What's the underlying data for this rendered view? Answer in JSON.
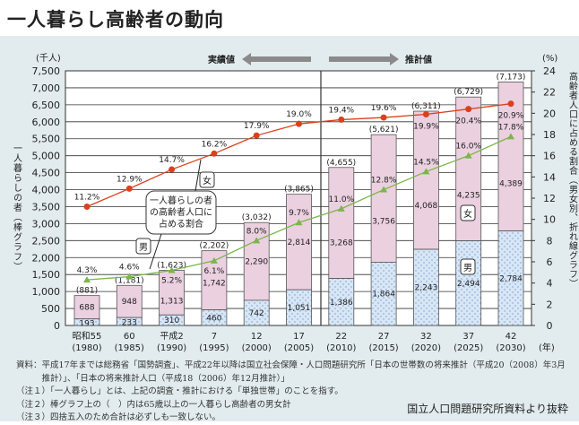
{
  "title": "一人暮らし高齢者の動向",
  "chart_data": {
    "type": "bar+line",
    "categories": [
      "昭和55",
      "60",
      "平成2",
      "7",
      "12",
      "17",
      "22",
      "27",
      "32",
      "37",
      "42"
    ],
    "years": [
      "(1980)",
      "(1985)",
      "(1990)",
      "(1995)",
      "(2000)",
      "(2005)",
      "(2010)",
      "(2015)",
      "(2020)",
      "(2025)",
      "(2030)"
    ],
    "x_unit": "(年)",
    "bars": {
      "male": [
        193,
        233,
        310,
        460,
        742,
        1051,
        1386,
        1864,
        2243,
        2494,
        2784
      ],
      "female": [
        688,
        948,
        1313,
        1742,
        2290,
        2814,
        3268,
        3756,
        4068,
        4235,
        4389
      ],
      "totals": [
        "(881)",
        "(1,181)",
        "(1,623)",
        "(2,202)",
        "(3,032)",
        "(3,865)",
        "(4,655)",
        "(5,621)",
        "(6,311)",
        "(6,729)",
        "(7,173)"
      ]
    },
    "lines": {
      "female_pct": [
        11.2,
        12.9,
        14.7,
        16.2,
        17.9,
        19.0,
        19.4,
        19.6,
        19.9,
        20.4,
        20.9
      ],
      "male_pct": [
        4.3,
        4.6,
        5.2,
        6.1,
        8.0,
        9.7,
        11.0,
        12.8,
        14.5,
        16.0,
        17.8
      ]
    },
    "left_axis": {
      "unit": "(千人)",
      "label": "一人暮らしの者（棒グラフ）",
      "ylim": [
        0,
        7500
      ],
      "ticks": [
        "0",
        "500",
        "1,000",
        "1,500",
        "2,000",
        "2,500",
        "3,000",
        "3,500",
        "4,000",
        "4,500",
        "5,000",
        "5,500",
        "6,000",
        "6,500",
        "7,000",
        "7,500"
      ]
    },
    "right_axis": {
      "unit": "(%)",
      "label": "高齢者人口に占める割合（男女別、折れ線グラフ）",
      "ylim": [
        0,
        24
      ],
      "ticks": [
        "0",
        "2",
        "4",
        "6",
        "8",
        "10",
        "12",
        "14",
        "16",
        "18",
        "20",
        "22",
        "24"
      ]
    },
    "actual_label": "実績値",
    "projected_label": "推計値",
    "callout": "一人暮らしの者の高齢者人口に占める割合",
    "female_label": "女",
    "male_label": "男",
    "colors": {
      "female_bar": "#ebd0df",
      "male_bar": "#d8e6f5",
      "female_line": "#d9411e",
      "male_line": "#7ab648",
      "arrow": "#8a8a8a"
    },
    "grid": true
  },
  "notes": [
    "資料：平成17年までは総務省「国勢調査」、平成22年以降は国立社会保障・人口問題研究所「日本の世帯数の将来推計（平成20（2008）年3月",
    "　　　推計）」、「日本の将来推計人口（平成18（2006）年12月推計）」",
    "（注１）「一人暮らし」とは、上記の調査・推計における「単独世帯」のことを指す。",
    "（注２）棒グラフ上の（　）内は65歳以上の一人暮らし高齢者の男女計",
    "（注３）四捨五入のため合計は必ずしも一致しない。"
  ],
  "credit": "国立人口問題研究所資料より抜粋"
}
